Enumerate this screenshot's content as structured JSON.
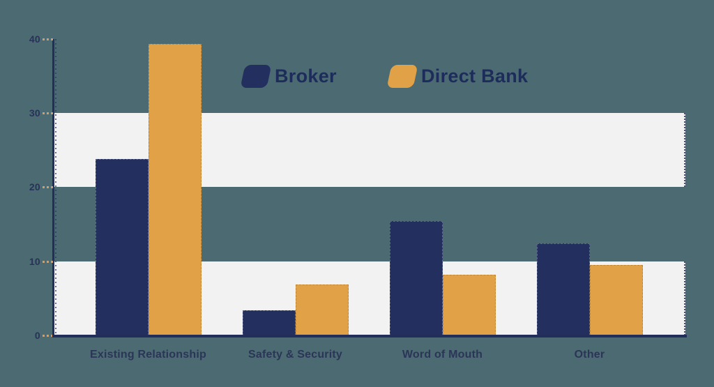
{
  "chart_data": {
    "type": "bar",
    "title": "",
    "categories": [
      "Existing Relationship",
      "Safety & Security",
      "Word of Mouth",
      "Other"
    ],
    "series": [
      {
        "name": "Broker",
        "color": "#232F5F",
        "values": [
          23.8,
          3.4,
          15.4,
          12.4
        ]
      },
      {
        "name": "Direct Bank",
        "color": "#E1A247",
        "values": [
          39.3,
          6.9,
          8.2,
          9.5
        ]
      }
    ],
    "ylim": [
      0,
      40
    ],
    "yticks": [
      0,
      10,
      20,
      30,
      40
    ],
    "grid_bands": [
      [
        20,
        30
      ],
      [
        0,
        10
      ]
    ],
    "legend_position": "top-center",
    "grid": "horizontal-bands"
  },
  "colors": {
    "background": "#4C6A71",
    "band": "#F2F2F3",
    "axis": "#232E5A",
    "tick_mark": "#DA9C5E",
    "tick_label": "#273258",
    "category_label": "#2B3557",
    "legend_text": "#1D2C5B",
    "series_broker": "#232F5F",
    "series_direct_bank": "#E1A247"
  }
}
